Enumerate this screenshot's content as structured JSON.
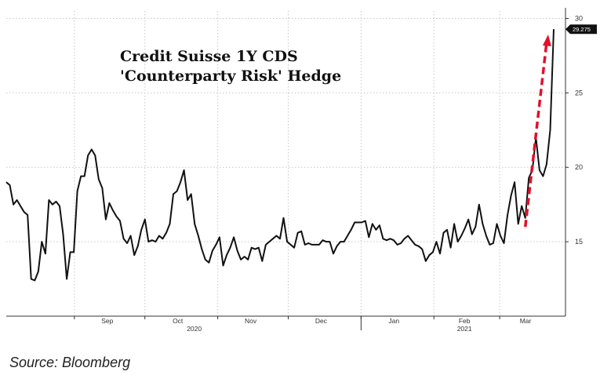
{
  "chart_data": {
    "type": "line",
    "title_lines": [
      "Credit Suisse 1Y CDS",
      "'Counterparty Risk' Hedge"
    ],
    "x_tick_labels": [
      "Sep",
      "Oct",
      "Nov",
      "Dec",
      "Jan",
      "Feb",
      "Mar"
    ],
    "x_year_labels": [
      "2020",
      "2021"
    ],
    "y_ticks": [
      15,
      20,
      25,
      30
    ],
    "ylim": [
      10,
      30.5
    ],
    "last_value_label": "29.275",
    "grid": "dotted vertical and horizontal",
    "annotation": "red dashed upward arrow near latest values",
    "colors": {
      "line": "#111111",
      "arrow": "#e0112b",
      "grid": "#c8c8c8",
      "axis": "#333333"
    },
    "series": [
      {
        "values": [
          19.0,
          18.8,
          17.5,
          17.8,
          17.4,
          17.0,
          16.8,
          12.5,
          12.4,
          13.0,
          15.0,
          14.2,
          17.8,
          17.5,
          17.7,
          17.4,
          15.5,
          12.5,
          14.3,
          14.3,
          18.4,
          19.4,
          19.4,
          20.8,
          21.2,
          20.8,
          19.2,
          18.6,
          16.5,
          17.6,
          17.1,
          16.7,
          16.4,
          15.2,
          14.9,
          15.4,
          14.1,
          14.7,
          15.8,
          16.5,
          15.0,
          15.1,
          15.0,
          15.4,
          15.2,
          15.6,
          16.2,
          18.2,
          18.4,
          19.0,
          19.8,
          17.8,
          18.2,
          16.2,
          15.4,
          14.5,
          13.8,
          13.6,
          14.4,
          14.8,
          15.3,
          13.4,
          14.1,
          14.6,
          15.3,
          14.4,
          13.8,
          14.0,
          13.8,
          14.6,
          14.5,
          14.6,
          13.7,
          14.8,
          15.0,
          15.2,
          15.4,
          15.2,
          16.6,
          15.0,
          14.8,
          14.6,
          15.6,
          15.7,
          14.8,
          14.9,
          14.8,
          14.8,
          14.8,
          15.1,
          15.0,
          15.0,
          14.2,
          14.7,
          15.0,
          15.0,
          15.4,
          15.8,
          16.3,
          16.3,
          16.3,
          16.4,
          15.3,
          16.2,
          15.8,
          16.1,
          15.2,
          15.1,
          15.2,
          15.1,
          14.8,
          14.9,
          15.2,
          15.4,
          15.1,
          14.8,
          14.7,
          14.5,
          13.7,
          14.1,
          14.3,
          15.0,
          14.2,
          15.6,
          15.8,
          14.6,
          16.2,
          15.0,
          15.4,
          15.9,
          16.5,
          15.5,
          16.0,
          17.5,
          16.2,
          15.4,
          14.8,
          14.9,
          16.2,
          15.4,
          14.9,
          16.8,
          18.1,
          19.0,
          16.2,
          17.4,
          16.6,
          19.3,
          19.8,
          22.0,
          19.8,
          19.4,
          20.2,
          22.5,
          29.275
        ],
        "x_start_date": "2020-08-03",
        "x_end_date": "2021-03-24"
      }
    ]
  },
  "footer": {
    "source": "Source: Bloomberg"
  }
}
